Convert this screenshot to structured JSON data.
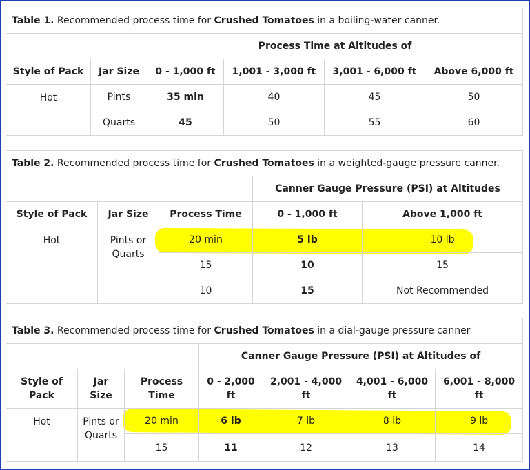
{
  "table1": {
    "caption_label": "Table 1.",
    "caption_pre": " Recommended process time for ",
    "caption_bold": "Crushed Tomatoes",
    "caption_post": " in a boiling-water canner.",
    "group_header": "Process Time at Altitudes of",
    "headers": [
      "Style of Pack",
      "Jar Size",
      "0 - 1,000 ft",
      "1,001 - 3,000 ft",
      "3,001 - 6,000 ft",
      "Above 6,000 ft"
    ],
    "style": "Hot",
    "rows": [
      {
        "jar": "Pints",
        "values": [
          "35 min",
          "40",
          "45",
          "50"
        ]
      },
      {
        "jar": "Quarts",
        "values": [
          "45",
          "50",
          "55",
          "60"
        ]
      }
    ]
  },
  "table2": {
    "caption_label": "Table 2.",
    "caption_pre": " Recommended process time for ",
    "caption_bold": "Crushed Tomatoes",
    "caption_post": " in a weighted-gauge pressure canner.",
    "group_header": "Canner Gauge Pressure (PSI) at Altitudes",
    "headers": [
      "Style of Pack",
      "Jar Size",
      "Process Time",
      "0 - 1,000 ft",
      "Above 1,000 ft"
    ],
    "style": "Hot",
    "jar": "Pints or Quarts",
    "rows": [
      {
        "time": "20 min",
        "low": "5 lb",
        "high": "10 lb"
      },
      {
        "time": "15",
        "low": "10",
        "high": "15"
      },
      {
        "time": "10",
        "low": "15",
        "high": "Not Recommended"
      }
    ]
  },
  "table3": {
    "caption_label": "Table 3.",
    "caption_pre": " Recommended process time for ",
    "caption_bold": "Crushed Tomatoes",
    "caption_post": " in a dial-gauge pressure canner",
    "group_header": "Canner Gauge Pressure (PSI) at Altitudes of",
    "headers": [
      "Style of Pack",
      "Jar Size",
      "Process Time",
      "0 - 2,000 ft",
      "2,001 - 4,000 ft",
      "4,001 - 6,000 ft",
      "6,001 - 8,000 ft"
    ],
    "style": "Hot",
    "jar": "Pints or Quarts",
    "rows": [
      {
        "time": "20 min",
        "values": [
          "6 lb",
          "7 lb",
          "8 lb",
          "9 lb"
        ]
      },
      {
        "time": "15",
        "values": [
          "11",
          "12",
          "13",
          "14"
        ]
      }
    ]
  },
  "highlight_color": "#ffff00",
  "frame_color": "#1e3fb5"
}
